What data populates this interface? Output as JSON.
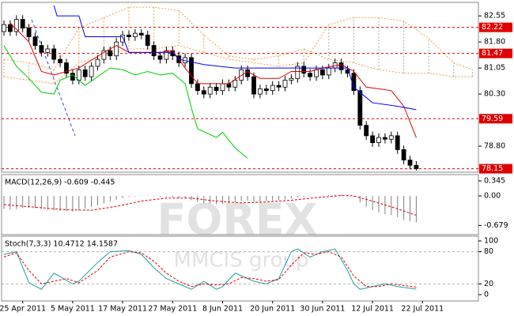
{
  "chart_data": [
    {
      "type": "candlestick",
      "ylim": [
        78.05,
        82.94
      ],
      "yticks": [
        82.55,
        {
          "value": 81.8,
          "label": "81.80"
        },
        81.05,
        {
          "value": 80.3,
          "label": "80.30"
        },
        {
          "value": 78.8,
          "label": "78.80"
        }
      ],
      "open": [
        82.1,
        82.3,
        82.1,
        82.45,
        82.2,
        81.95,
        81.7,
        81.5,
        81.6,
        81.3,
        81.2,
        80.9,
        80.7,
        81.0,
        80.8,
        81.1,
        81.3,
        81.55,
        81.4,
        81.8,
        82.0,
        81.95,
        82.05,
        82.0,
        81.7,
        81.4,
        81.3,
        81.55,
        81.4,
        81.2,
        81.35,
        80.6,
        80.4,
        80.3,
        80.5,
        80.4,
        80.6,
        80.5,
        80.7,
        81.0,
        80.8,
        80.3,
        80.45,
        80.4,
        80.55,
        80.5,
        80.7,
        80.75,
        81.1,
        80.9,
        80.8,
        81.0,
        80.85,
        81.05,
        81.2,
        81.0,
        80.9,
        80.4,
        79.4,
        79.1,
        78.9,
        79.05,
        79.0,
        79.1,
        78.7,
        78.4,
        78.25,
        null,
        null,
        null,
        null,
        null,
        null,
        null,
        null,
        null
      ],
      "high": [
        82.42,
        82.42,
        82.57,
        82.57,
        82.32,
        82.07,
        81.82,
        81.72,
        81.72,
        81.42,
        81.32,
        81.02,
        81.12,
        81.12,
        81.22,
        81.42,
        81.67,
        81.67,
        81.92,
        82.12,
        82.12,
        82.17,
        82.17,
        82.12,
        81.82,
        81.52,
        81.67,
        81.67,
        81.52,
        81.47,
        81.47,
        80.72,
        80.52,
        80.62,
        80.62,
        80.72,
        80.72,
        80.82,
        81.12,
        81.12,
        80.92,
        80.57,
        80.57,
        80.67,
        80.67,
        80.82,
        80.87,
        81.22,
        81.22,
        81.02,
        81.12,
        81.12,
        81.17,
        81.32,
        81.32,
        81.12,
        81.02,
        80.52,
        79.52,
        79.22,
        79.17,
        79.17,
        79.22,
        79.22,
        78.82,
        78.52,
        78.37,
        null,
        null,
        null,
        null,
        null,
        null,
        null,
        null,
        null
      ],
      "low": [
        81.98,
        81.98,
        81.98,
        82.08,
        81.83,
        81.58,
        81.38,
        81.38,
        81.18,
        81.08,
        80.78,
        80.58,
        80.58,
        80.68,
        80.68,
        80.98,
        81.18,
        81.28,
        81.28,
        81.68,
        81.83,
        81.83,
        81.88,
        81.58,
        81.28,
        81.18,
        81.18,
        81.28,
        81.08,
        81.08,
        80.48,
        80.28,
        80.18,
        80.18,
        80.28,
        80.28,
        80.38,
        80.38,
        80.58,
        80.68,
        80.18,
        80.18,
        80.28,
        80.28,
        80.38,
        80.38,
        80.58,
        80.63,
        80.78,
        80.68,
        80.68,
        80.73,
        80.73,
        80.93,
        80.88,
        80.78,
        80.28,
        79.28,
        78.98,
        78.78,
        78.78,
        78.88,
        78.88,
        78.58,
        78.28,
        78.13,
        78.1,
        null,
        null,
        null,
        null,
        null,
        null,
        null,
        null,
        null
      ],
      "close": [
        82.3,
        82.1,
        82.45,
        82.2,
        81.95,
        81.7,
        81.5,
        81.6,
        81.3,
        81.2,
        80.9,
        80.7,
        81.0,
        80.8,
        81.1,
        81.3,
        81.55,
        81.4,
        81.8,
        82.0,
        81.95,
        82.05,
        82.0,
        81.7,
        81.4,
        81.3,
        81.55,
        81.4,
        81.2,
        81.35,
        80.6,
        80.4,
        80.3,
        80.5,
        80.4,
        80.6,
        80.5,
        80.7,
        81.0,
        80.8,
        80.3,
        80.45,
        80.4,
        80.55,
        80.5,
        80.7,
        80.75,
        81.1,
        80.9,
        80.8,
        81.0,
        80.85,
        81.05,
        81.2,
        81.0,
        80.9,
        80.4,
        79.4,
        79.1,
        78.9,
        79.05,
        79.0,
        79.1,
        78.7,
        78.4,
        78.25,
        78.15,
        null,
        null,
        null,
        null,
        null,
        null,
        null,
        null,
        null
      ],
      "cloud": {
        "x": [
          0,
          4,
          8,
          12,
          16,
          20,
          24,
          28,
          32,
          36,
          40,
          44,
          48,
          52,
          56,
          60,
          64,
          68,
          72,
          75
        ],
        "span_a": [
          81.3,
          81.2,
          81.0,
          82.2,
          82.5,
          82.8,
          82.8,
          82.7,
          82.0,
          81.4,
          81.3,
          81.4,
          81.6,
          81.3,
          81.2,
          81.0,
          80.9,
          80.9,
          80.8,
          80.8
        ],
        "span_b": [
          80.8,
          80.7,
          80.6,
          81.2,
          81.4,
          81.6,
          81.6,
          81.7,
          81.5,
          81.3,
          81.2,
          81.1,
          81.2,
          82.3,
          82.5,
          82.5,
          82.4,
          81.9,
          81.2,
          81.0
        ],
        "colors": [
          "#f0a050",
          "#a8a8a8"
        ]
      },
      "levels": {
        "values": [
          82.22,
          81.47,
          79.59,
          78.15
        ],
        "color": "#e00000"
      },
      "lines": [
        {
          "color": "#e00000",
          "dash": false,
          "x": [
            1,
            4,
            6,
            8,
            12,
            16,
            18,
            20,
            25,
            27,
            29,
            31,
            36,
            39,
            41,
            44,
            46,
            49,
            51,
            54,
            56,
            58,
            62,
            64,
            66
          ],
          "values": [
            82.35,
            81.8,
            80.95,
            80.85,
            81.05,
            81.5,
            81.7,
            81.5,
            81.5,
            81.55,
            81.05,
            80.6,
            80.6,
            80.95,
            80.75,
            80.75,
            80.95,
            80.95,
            81.05,
            81.15,
            80.95,
            80.5,
            80.4,
            79.95,
            79.05
          ]
        },
        {
          "color": "#0000ff",
          "dash": false,
          "x": [
            8,
            8.5,
            12,
            13,
            19,
            20,
            27,
            28,
            32,
            37,
            55,
            56,
            59,
            63,
            66
          ],
          "values": [
            82.85,
            82.55,
            82.55,
            81.95,
            81.95,
            81.5,
            81.5,
            81.3,
            81.15,
            81.05,
            81.05,
            80.5,
            80.05,
            79.95,
            79.85
          ]
        },
        {
          "color": "#00cc00",
          "dash": false,
          "x": [
            0,
            2,
            4,
            6,
            8,
            9,
            11,
            13,
            15,
            17,
            19,
            21,
            23,
            25,
            27,
            29,
            30,
            31,
            34,
            35,
            37,
            39
          ],
          "values": [
            81.7,
            81.1,
            80.75,
            80.35,
            80.3,
            80.7,
            80.85,
            80.55,
            80.8,
            81.05,
            81.0,
            80.85,
            80.95,
            80.85,
            80.9,
            80.6,
            79.9,
            79.3,
            79.05,
            79.2,
            78.75,
            78.45
          ]
        }
      ],
      "watermark": [
        "FOREX",
        "MMCIS group"
      ]
    },
    {
      "type": "bar",
      "title": "MACD(12,26,9) -0.609 -0.445",
      "ylim": [
        -0.89,
        0.49
      ],
      "yticks": [
        0.345,
        {
          "value": 0,
          "label": "0.00"
        },
        -0.679
      ],
      "color": "#808080",
      "values": [
        -0.3,
        -0.32,
        -0.3,
        -0.28,
        -0.27,
        -0.28,
        -0.3,
        -0.32,
        -0.33,
        -0.34,
        -0.35,
        -0.36,
        -0.33,
        -0.3,
        -0.26,
        -0.22,
        -0.17,
        -0.13,
        -0.09,
        -0.05,
        -0.02,
        0,
        0.01,
        0.01,
        0,
        -0.02,
        -0.02,
        -0.03,
        -0.05,
        -0.06,
        -0.1,
        -0.14,
        -0.17,
        -0.18,
        -0.19,
        -0.18,
        -0.17,
        -0.15,
        -0.12,
        -0.11,
        -0.13,
        -0.13,
        -0.12,
        -0.11,
        -0.1,
        -0.08,
        -0.06,
        -0.03,
        -0.02,
        -0.01,
        0,
        0.01,
        0.02,
        0.03,
        0.03,
        0.02,
        -0.03,
        -0.15,
        -0.25,
        -0.33,
        -0.38,
        -0.42,
        -0.44,
        -0.49,
        -0.55,
        -0.58,
        -0.609,
        null,
        null,
        null,
        null,
        null,
        null,
        null,
        null,
        null
      ],
      "lines": [
        {
          "color": "#e00000",
          "dash": true,
          "x": [
            0,
            5,
            10,
            14,
            18,
            22,
            26,
            30,
            34,
            38,
            42,
            46,
            50,
            54,
            56,
            58,
            62,
            66
          ],
          "values": [
            -0.2,
            -0.26,
            -0.32,
            -0.33,
            -0.24,
            -0.12,
            -0.05,
            -0.05,
            -0.12,
            -0.16,
            -0.14,
            -0.1,
            -0.04,
            0.01,
            0,
            -0.08,
            -0.25,
            -0.445
          ]
        }
      ]
    },
    {
      "type": "line",
      "title": "Stoch(7,3,3) 10.4712 14.1587",
      "ylim": [
        -11.8,
        108.8
      ],
      "yticks": [
        100,
        80,
        20,
        0
      ],
      "levels": [
        20,
        80
      ],
      "categories": [
        null,
        null,
        null,
        "25 Apr 2011",
        null,
        null,
        null,
        null,
        null,
        null,
        null,
        "5 May 2011",
        null,
        null,
        null,
        null,
        null,
        null,
        null,
        "17 May 2011",
        null,
        null,
        null,
        null,
        null,
        null,
        null,
        "27 May 2011",
        null,
        null,
        null,
        null,
        null,
        null,
        null,
        "8 Jun 2011",
        null,
        null,
        null,
        null,
        null,
        null,
        null,
        "20 Jun 2011",
        null,
        null,
        null,
        null,
        null,
        null,
        null,
        "30 Jun 2011",
        null,
        null,
        null,
        null,
        null,
        null,
        null,
        "12 Jul 2011",
        null,
        null,
        null,
        null,
        null,
        null,
        null,
        "22 Jul 2011",
        null,
        null,
        null,
        null,
        null,
        null,
        null,
        null
      ],
      "lines": [
        {
          "color": "#20a0a0",
          "dash": false,
          "x": [
            0,
            2,
            4,
            6,
            8,
            11,
            12,
            15,
            17,
            20,
            22,
            24,
            26,
            28,
            30,
            32,
            34,
            35,
            37,
            40,
            42,
            44,
            46,
            47,
            49,
            51,
            53,
            55,
            56,
            57,
            59,
            61,
            63,
            65,
            66
          ],
          "values": [
            75,
            80,
            22,
            10,
            40,
            20,
            25,
            60,
            80,
            82,
            75,
            50,
            30,
            20,
            10,
            25,
            10,
            15,
            40,
            25,
            20,
            30,
            80,
            85,
            70,
            80,
            85,
            45,
            20,
            10,
            15,
            20,
            15,
            12,
            10.4712
          ]
        },
        {
          "color": "#e00000",
          "dash": true,
          "x": [
            0,
            2,
            4,
            6,
            8,
            10,
            12,
            15,
            17,
            20,
            22,
            24,
            26,
            28,
            30,
            32,
            34,
            36,
            38,
            40,
            42,
            44,
            46,
            48,
            50,
            52,
            54,
            56,
            58,
            60,
            62,
            64,
            66
          ],
          "values": [
            70,
            78,
            45,
            20,
            25,
            30,
            22,
            45,
            70,
            80,
            78,
            62,
            40,
            25,
            15,
            20,
            18,
            20,
            32,
            30,
            25,
            28,
            55,
            78,
            75,
            80,
            70,
            35,
            15,
            15,
            20,
            17,
            14.1587
          ]
        }
      ]
    }
  ]
}
